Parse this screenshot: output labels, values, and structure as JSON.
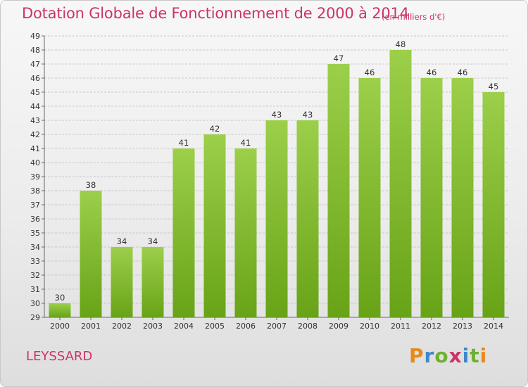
{
  "header": {
    "title": "Dotation Globale de Fonctionnement de 2000 à 2014",
    "subtitle": "(en milliers d'€)"
  },
  "footer": {
    "commune": "LEYSSARD",
    "logo": [
      "P",
      "r",
      "o",
      "x",
      "i",
      "t",
      "i"
    ]
  },
  "colors": {
    "title": "#cc3366",
    "bar_light": "#9ccf4a",
    "bar_dark": "#68a317",
    "grid": "#c8c8c8"
  },
  "chart_data": {
    "type": "bar",
    "title": "Dotation Globale de Fonctionnement de 2000 à 2014",
    "subtitle": "(en milliers d'€)",
    "categories": [
      "2000",
      "2001",
      "2002",
      "2003",
      "2004",
      "2005",
      "2006",
      "2007",
      "2008",
      "2009",
      "2010",
      "2011",
      "2012",
      "2013",
      "2014"
    ],
    "values": [
      30,
      38,
      34,
      34,
      41,
      42,
      41,
      43,
      43,
      47,
      46,
      48,
      46,
      46,
      45
    ],
    "ylim": [
      29,
      49
    ],
    "yticks": [
      29,
      30,
      31,
      32,
      33,
      34,
      35,
      36,
      37,
      38,
      39,
      40,
      41,
      42,
      43,
      44,
      45,
      46,
      47,
      48,
      49
    ],
    "grid": true,
    "data_labels": true
  }
}
